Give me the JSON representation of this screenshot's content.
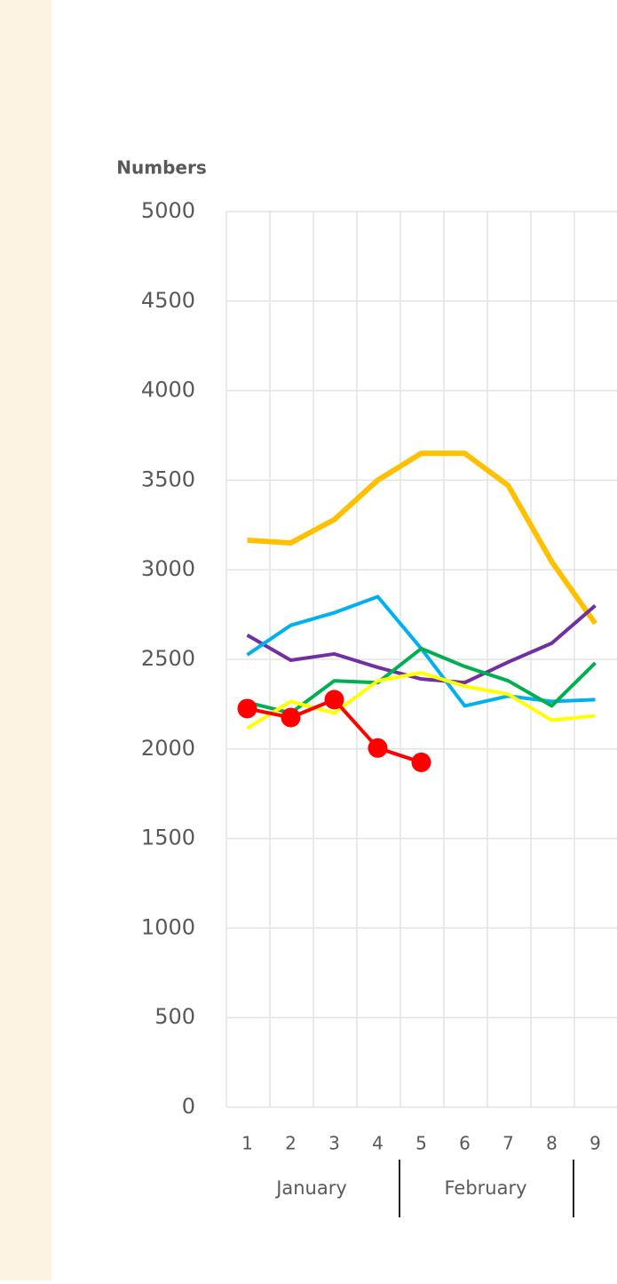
{
  "chart_data": {
    "type": "line",
    "y_axis_title": "Numbers",
    "categories": [
      "1",
      "2",
      "3",
      "4",
      "5",
      "6",
      "7",
      "8",
      "9"
    ],
    "groups": [
      "January",
      "February"
    ],
    "ylim": [
      0,
      5000
    ],
    "yticks": [
      0,
      500,
      1000,
      1500,
      2000,
      2500,
      3000,
      3500,
      4000,
      4500,
      5000
    ],
    "grid": true,
    "series": [
      {
        "color": "#ffc000",
        "values": [
          3165,
          3150,
          3280,
          3500,
          3650,
          3650,
          3470,
          3045,
          2700
        ]
      },
      {
        "color": "#7030a0",
        "values": [
          2635,
          2495,
          2530,
          2455,
          2390,
          2370,
          2485,
          2590,
          2800
        ]
      },
      {
        "color": "#00b0f0",
        "values": [
          2525,
          2690,
          2760,
          2850,
          2560,
          2240,
          2295,
          2265,
          2275
        ]
      },
      {
        "color": "#00b050",
        "values": [
          2260,
          2200,
          2380,
          2370,
          2560,
          2460,
          2380,
          2240,
          2480
        ]
      },
      {
        "color": "#ffff00",
        "values": [
          2115,
          2265,
          2200,
          2380,
          2425,
          2350,
          2305,
          2160,
          2185
        ]
      },
      {
        "color": "#ff0000",
        "markers": true,
        "values": [
          2225,
          2175,
          2275,
          2005,
          1925,
          null,
          null,
          null,
          null
        ]
      }
    ]
  }
}
